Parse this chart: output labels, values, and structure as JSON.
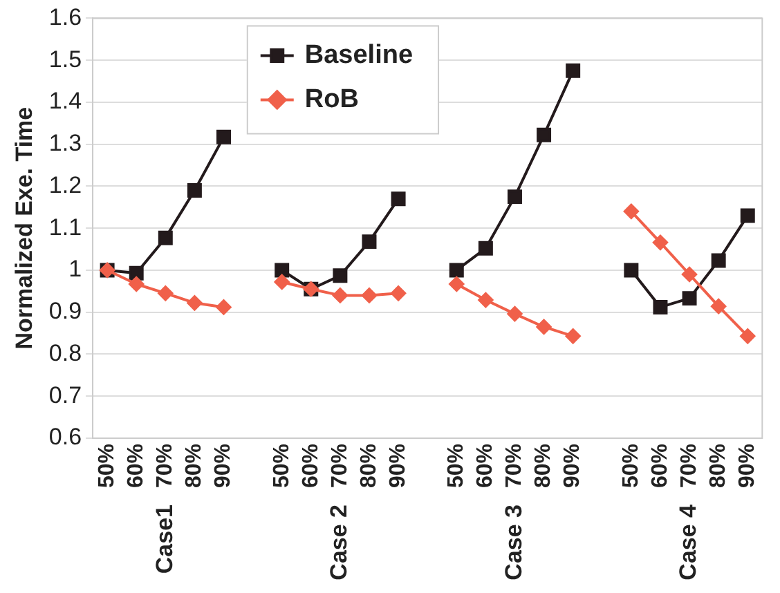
{
  "chart_data": {
    "type": "line",
    "ylabel": "Normalized Exe. Time",
    "categories": [
      "50%",
      "60%",
      "70%",
      "80%",
      "90%",
      null,
      "50%",
      "60%",
      "70%",
      "80%",
      "90%",
      null,
      "50%",
      "60%",
      "70%",
      "80%",
      "90%",
      null,
      "50%",
      "60%",
      "70%",
      "80%",
      "90%"
    ],
    "series": [
      {
        "name": "Baseline",
        "color": "#231a1c",
        "marker": "square",
        "values": [
          1.0,
          0.993,
          1.077,
          1.19,
          1.317,
          null,
          1.0,
          0.955,
          0.987,
          1.068,
          1.17,
          null,
          1.0,
          1.052,
          1.175,
          1.322,
          1.475,
          null,
          1.0,
          0.912,
          0.933,
          1.023,
          1.13
        ]
      },
      {
        "name": "RoB",
        "color": "#f0604a",
        "marker": "diamond",
        "values": [
          1.0,
          0.967,
          0.945,
          0.922,
          0.912,
          null,
          0.972,
          0.955,
          0.94,
          0.94,
          0.945,
          null,
          0.967,
          0.929,
          0.896,
          0.865,
          0.843,
          null,
          1.14,
          1.066,
          0.99,
          0.914,
          0.843
        ]
      }
    ],
    "annotations": [
      "Case1",
      "Case 2",
      "Case 3",
      "Case 4"
    ],
    "ylim": [
      0.6,
      1.6
    ],
    "yticks": [
      0.6,
      0.7,
      0.8,
      0.9,
      1,
      1.1,
      1.2,
      1.3,
      1.4,
      1.5,
      1.6
    ],
    "grid": "y",
    "legend": "top"
  }
}
